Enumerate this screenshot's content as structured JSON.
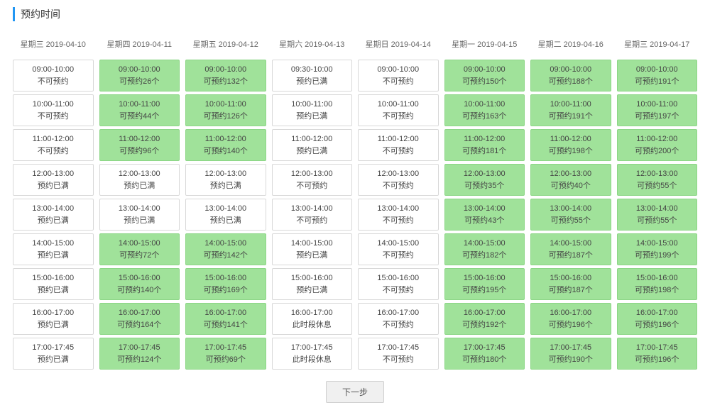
{
  "title": "预约时间",
  "next_button": "下一步",
  "colors": {
    "accent": "#2196f3",
    "available_bg": "#a0e29a",
    "available_border": "#8cd686",
    "slot_border": "#d8d8d8",
    "text": "#333333"
  },
  "time_rows": [
    "09:00-10:00",
    "10:00-11:00",
    "11:00-12:00",
    "12:00-13:00",
    "13:00-14:00",
    "14:00-15:00",
    "15:00-16:00",
    "16:00-17:00",
    "17:00-17:45"
  ],
  "days": [
    {
      "header": "星期三 2019-04-10",
      "slots": [
        {
          "time": "09:00-10:00",
          "status": "不可预约",
          "available": false
        },
        {
          "time": "10:00-11:00",
          "status": "不可预约",
          "available": false
        },
        {
          "time": "11:00-12:00",
          "status": "不可预约",
          "available": false
        },
        {
          "time": "12:00-13:00",
          "status": "预约已满",
          "available": false
        },
        {
          "time": "13:00-14:00",
          "status": "预约已满",
          "available": false
        },
        {
          "time": "14:00-15:00",
          "status": "预约已满",
          "available": false
        },
        {
          "time": "15:00-16:00",
          "status": "预约已满",
          "available": false
        },
        {
          "time": "16:00-17:00",
          "status": "预约已满",
          "available": false
        },
        {
          "time": "17:00-17:45",
          "status": "预约已满",
          "available": false
        }
      ]
    },
    {
      "header": "星期四 2019-04-11",
      "slots": [
        {
          "time": "09:00-10:00",
          "status": "可预约26个",
          "available": true
        },
        {
          "time": "10:00-11:00",
          "status": "可预约44个",
          "available": true
        },
        {
          "time": "11:00-12:00",
          "status": "可预约96个",
          "available": true
        },
        {
          "time": "12:00-13:00",
          "status": "预约已满",
          "available": false
        },
        {
          "time": "13:00-14:00",
          "status": "预约已满",
          "available": false
        },
        {
          "time": "14:00-15:00",
          "status": "可预约72个",
          "available": true
        },
        {
          "time": "15:00-16:00",
          "status": "可预约140个",
          "available": true
        },
        {
          "time": "16:00-17:00",
          "status": "可预约164个",
          "available": true
        },
        {
          "time": "17:00-17:45",
          "status": "可预约124个",
          "available": true
        }
      ]
    },
    {
      "header": "星期五 2019-04-12",
      "slots": [
        {
          "time": "09:00-10:00",
          "status": "可预约132个",
          "available": true
        },
        {
          "time": "10:00-11:00",
          "status": "可预约126个",
          "available": true
        },
        {
          "time": "11:00-12:00",
          "status": "可预约140个",
          "available": true
        },
        {
          "time": "12:00-13:00",
          "status": "预约已满",
          "available": false
        },
        {
          "time": "13:00-14:00",
          "status": "预约已满",
          "available": false
        },
        {
          "time": "14:00-15:00",
          "status": "可预约142个",
          "available": true
        },
        {
          "time": "15:00-16:00",
          "status": "可预约169个",
          "available": true
        },
        {
          "time": "16:00-17:00",
          "status": "可预约141个",
          "available": true
        },
        {
          "time": "17:00-17:45",
          "status": "可预约69个",
          "available": true
        }
      ]
    },
    {
      "header": "星期六 2019-04-13",
      "slots": [
        {
          "time": "09:30-10:00",
          "status": "预约已满",
          "available": false
        },
        {
          "time": "10:00-11:00",
          "status": "预约已满",
          "available": false
        },
        {
          "time": "11:00-12:00",
          "status": "预约已满",
          "available": false
        },
        {
          "time": "12:00-13:00",
          "status": "不可预约",
          "available": false
        },
        {
          "time": "13:00-14:00",
          "status": "不可预约",
          "available": false
        },
        {
          "time": "14:00-15:00",
          "status": "预约已满",
          "available": false
        },
        {
          "time": "15:00-16:00",
          "status": "预约已满",
          "available": false
        },
        {
          "time": "16:00-17:00",
          "status": "此时段休息",
          "available": false
        },
        {
          "time": "17:00-17:45",
          "status": "此时段休息",
          "available": false
        }
      ]
    },
    {
      "header": "星期日 2019-04-14",
      "slots": [
        {
          "time": "09:00-10:00",
          "status": "不可预约",
          "available": false
        },
        {
          "time": "10:00-11:00",
          "status": "不可预约",
          "available": false
        },
        {
          "time": "11:00-12:00",
          "status": "不可预约",
          "available": false
        },
        {
          "time": "12:00-13:00",
          "status": "不可预约",
          "available": false
        },
        {
          "time": "13:00-14:00",
          "status": "不可预约",
          "available": false
        },
        {
          "time": "14:00-15:00",
          "status": "不可预约",
          "available": false
        },
        {
          "time": "15:00-16:00",
          "status": "不可预约",
          "available": false
        },
        {
          "time": "16:00-17:00",
          "status": "不可预约",
          "available": false
        },
        {
          "time": "17:00-17:45",
          "status": "不可预约",
          "available": false
        }
      ]
    },
    {
      "header": "星期一 2019-04-15",
      "slots": [
        {
          "time": "09:00-10:00",
          "status": "可预约150个",
          "available": true
        },
        {
          "time": "10:00-11:00",
          "status": "可预约163个",
          "available": true
        },
        {
          "time": "11:00-12:00",
          "status": "可预约181个",
          "available": true
        },
        {
          "time": "12:00-13:00",
          "status": "可预约35个",
          "available": true
        },
        {
          "time": "13:00-14:00",
          "status": "可预约43个",
          "available": true
        },
        {
          "time": "14:00-15:00",
          "status": "可预约182个",
          "available": true
        },
        {
          "time": "15:00-16:00",
          "status": "可预约195个",
          "available": true
        },
        {
          "time": "16:00-17:00",
          "status": "可预约192个",
          "available": true
        },
        {
          "time": "17:00-17:45",
          "status": "可预约180个",
          "available": true
        }
      ]
    },
    {
      "header": "星期二 2019-04-16",
      "slots": [
        {
          "time": "09:00-10:00",
          "status": "可预约188个",
          "available": true
        },
        {
          "time": "10:00-11:00",
          "status": "可预约191个",
          "available": true
        },
        {
          "time": "11:00-12:00",
          "status": "可预约198个",
          "available": true
        },
        {
          "time": "12:00-13:00",
          "status": "可预约40个",
          "available": true
        },
        {
          "time": "13:00-14:00",
          "status": "可预约55个",
          "available": true
        },
        {
          "time": "14:00-15:00",
          "status": "可预约187个",
          "available": true
        },
        {
          "time": "15:00-16:00",
          "status": "可预约187个",
          "available": true
        },
        {
          "time": "16:00-17:00",
          "status": "可预约196个",
          "available": true
        },
        {
          "time": "17:00-17:45",
          "status": "可预约190个",
          "available": true
        }
      ]
    },
    {
      "header": "星期三 2019-04-17",
      "slots": [
        {
          "time": "09:00-10:00",
          "status": "可预约191个",
          "available": true
        },
        {
          "time": "10:00-11:00",
          "status": "可预约197个",
          "available": true
        },
        {
          "time": "11:00-12:00",
          "status": "可预约200个",
          "available": true
        },
        {
          "time": "12:00-13:00",
          "status": "可预约55个",
          "available": true
        },
        {
          "time": "13:00-14:00",
          "status": "可预约55个",
          "available": true
        },
        {
          "time": "14:00-15:00",
          "status": "可预约199个",
          "available": true
        },
        {
          "time": "15:00-16:00",
          "status": "可预约198个",
          "available": true
        },
        {
          "time": "16:00-17:00",
          "status": "可预约196个",
          "available": true
        },
        {
          "time": "17:00-17:45",
          "status": "可预约196个",
          "available": true
        }
      ]
    }
  ]
}
